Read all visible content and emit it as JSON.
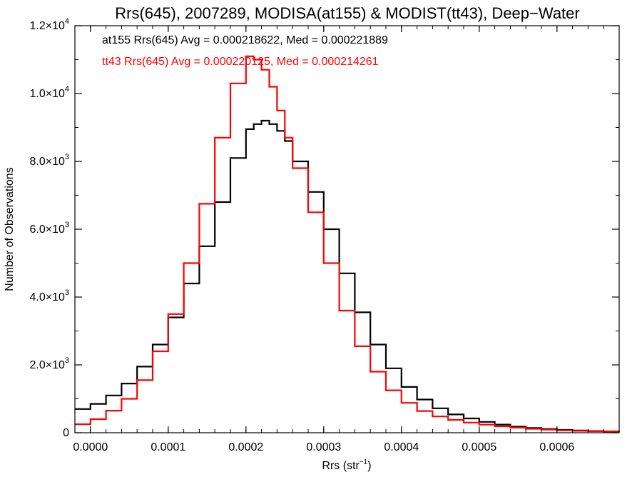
{
  "chart_data": {
    "type": "line",
    "title": "Rrs(645), 2007289, MODISA(at155) & MODIST(tt43), Deep−Water",
    "xlabel_main": "Rrs (str",
    "xlabel_sup": "−1",
    "xlabel_close": ")",
    "ylabel": "Number of Observations",
    "xlim": [
      -2e-05,
      0.00068
    ],
    "ylim": [
      0,
      12000
    ],
    "x_ticks": [
      {
        "value": 0.0,
        "label": "0.0000"
      },
      {
        "value": 0.0001,
        "label": "0.0001"
      },
      {
        "value": 0.0002,
        "label": "0.0002"
      },
      {
        "value": 0.0003,
        "label": "0.0003"
      },
      {
        "value": 0.0004,
        "label": "0.0004"
      },
      {
        "value": 0.0005,
        "label": "0.0005"
      },
      {
        "value": 0.0006,
        "label": "0.0006"
      }
    ],
    "y_ticks": [
      {
        "value": 0,
        "label": "0",
        "exp": ""
      },
      {
        "value": 2000,
        "label": "2.0×10",
        "exp": "3"
      },
      {
        "value": 4000,
        "label": "4.0×10",
        "exp": "3"
      },
      {
        "value": 6000,
        "label": "6.0×10",
        "exp": "3"
      },
      {
        "value": 8000,
        "label": "8.0×10",
        "exp": "3"
      },
      {
        "value": 10000,
        "label": "1.0×10",
        "exp": "4"
      },
      {
        "value": 12000,
        "label": "1.2×10",
        "exp": "4"
      }
    ],
    "annotations": [
      {
        "text": "at155 Rrs(645) Avg = 0.000218622, Med = 0.000221889",
        "color": "#000000"
      },
      {
        "text": "tt43 Rrs(645) Avg = 0.000220125, Med = 0.000214261",
        "color": "#ff0000"
      }
    ],
    "series": [
      {
        "color": "#000000",
        "x": [
          -2e-05,
          0.0,
          2e-05,
          4e-05,
          6e-05,
          8e-05,
          0.0001,
          0.00012,
          0.00014,
          0.00016,
          0.00018,
          0.0002,
          0.00021,
          0.00022,
          0.00023,
          0.00024,
          0.00025,
          0.00026,
          0.00028,
          0.0003,
          0.00032,
          0.00034,
          0.00036,
          0.00038,
          0.0004,
          0.00042,
          0.00044,
          0.00046,
          0.00048,
          0.0005,
          0.00052,
          0.00054,
          0.00056,
          0.00058,
          0.0006,
          0.00062,
          0.00064,
          0.00066,
          0.00068
        ],
        "y": [
          700,
          850,
          1100,
          1450,
          1950,
          2600,
          3400,
          4400,
          5500,
          6800,
          8100,
          8950,
          9100,
          9200,
          9100,
          8900,
          8600,
          8000,
          7100,
          6000,
          4700,
          3550,
          2600,
          1900,
          1350,
          980,
          720,
          540,
          420,
          320,
          240,
          180,
          140,
          110,
          85,
          65,
          50,
          40,
          30
        ]
      },
      {
        "color": "#ff0000",
        "x": [
          -2e-05,
          0.0,
          2e-05,
          4e-05,
          6e-05,
          8e-05,
          0.0001,
          0.00012,
          0.00014,
          0.00016,
          0.00018,
          0.0002,
          0.00021,
          0.00022,
          0.00023,
          0.00024,
          0.00025,
          0.00026,
          0.00028,
          0.0003,
          0.00032,
          0.00034,
          0.00036,
          0.00038,
          0.0004,
          0.00042,
          0.00044,
          0.00046,
          0.00048,
          0.0005,
          0.00052,
          0.00054,
          0.00056,
          0.00058,
          0.0006,
          0.00062,
          0.00064,
          0.00066,
          0.00068
        ],
        "y": [
          250,
          400,
          650,
          1000,
          1550,
          2400,
          3500,
          5000,
          6750,
          8700,
          10300,
          11100,
          11000,
          10700,
          10200,
          9500,
          8700,
          7800,
          6500,
          5000,
          3600,
          2550,
          1800,
          1250,
          880,
          640,
          480,
          380,
          300,
          240,
          190,
          150,
          115,
          90,
          70,
          55,
          45,
          35,
          30
        ]
      }
    ]
  }
}
